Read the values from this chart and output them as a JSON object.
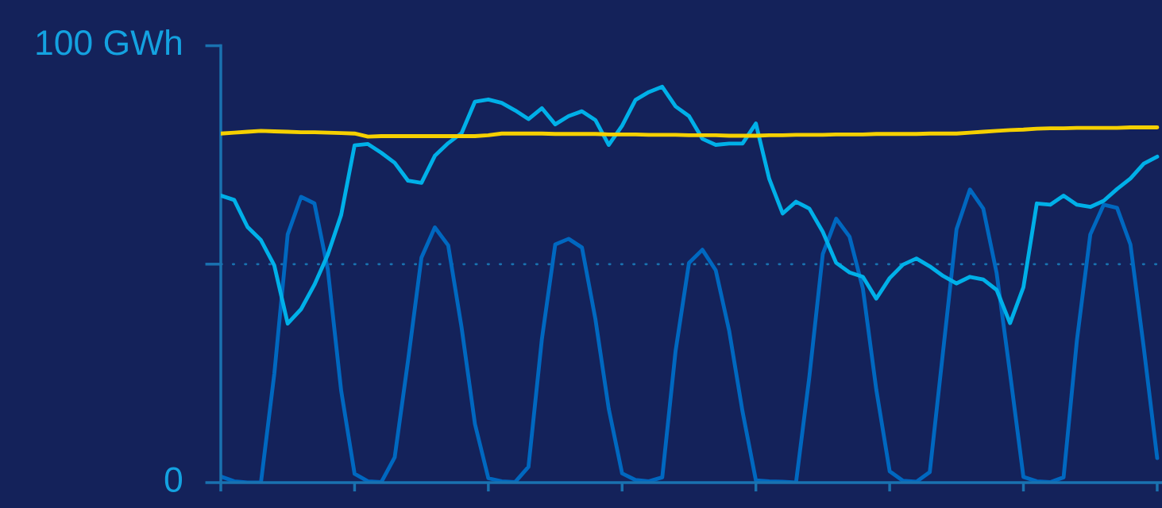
{
  "chart_data": {
    "type": "line",
    "ylim": [
      0,
      100
    ],
    "categories": [
      null,
      null,
      null,
      null,
      null,
      null,
      null,
      null,
      null,
      null,
      null,
      null,
      null,
      null,
      null,
      null,
      null,
      null,
      null,
      null,
      null,
      null,
      null,
      null,
      null,
      null,
      null,
      null,
      null,
      null,
      null,
      null,
      null,
      null,
      null,
      null,
      null,
      null,
      null,
      null,
      null,
      null,
      null,
      null,
      null,
      null,
      null,
      null,
      null,
      null,
      null,
      null,
      null,
      null,
      null,
      null,
      null,
      null,
      null,
      null,
      null,
      null,
      null,
      null,
      null,
      null,
      null,
      null,
      null,
      null,
      null
    ],
    "yticks": [
      {
        "value": 0,
        "label": "0"
      },
      {
        "value": 50,
        "label": null
      },
      {
        "value": 100,
        "label": "100 GWh"
      }
    ],
    "ref_lines": [
      {
        "axis": "y",
        "value": 50,
        "label": null,
        "color": "#1a72b0",
        "line_style": "dotted"
      }
    ],
    "marker": "none",
    "line_style": "solid",
    "series": [
      {
        "color": "#0068c0",
        "values": [
          1.4,
          0.3,
          0,
          0,
          24.9,
          56.8,
          65.4,
          63.9,
          48.8,
          21.0,
          2.0,
          0.3,
          0.1,
          5.8,
          28.0,
          51.5,
          58.4,
          54.3,
          35.5,
          13.4,
          1.0,
          0.3,
          0.1,
          3.6,
          32.8,
          54.5,
          55.8,
          53.8,
          37.5,
          16.9,
          2.1,
          0.6,
          0.3,
          1.2,
          30.2,
          50.3,
          53.3,
          48.6,
          34.8,
          16.3,
          0.5,
          0.3,
          0.2,
          0,
          24.3,
          52.3,
          60.4,
          56.3,
          44.4,
          21.3,
          2.6,
          0.4,
          0.2,
          2.4,
          30.2,
          58.0,
          67.1,
          62.7,
          47.9,
          25.0,
          1.3,
          0.3,
          0.1,
          1.2,
          32.6,
          56.8,
          63.6,
          62.9,
          54.5,
          30.8,
          5.6
        ]
      },
      {
        "color": "#00b0e8",
        "values": [
          65.7,
          64.7,
          58.5,
          55.5,
          49.7,
          36.4,
          39.7,
          45.3,
          52.2,
          61.3,
          77.2,
          77.5,
          75.5,
          73.2,
          69.1,
          68.6,
          74.8,
          77.7,
          80.0,
          87.2,
          87.7,
          86.9,
          85.2,
          83.2,
          85.7,
          82.0,
          83.9,
          85.0,
          83.0,
          77.3,
          81.7,
          87.6,
          89.4,
          90.6,
          86.1,
          83.9,
          78.7,
          77.3,
          77.6,
          77.6,
          82.2,
          69.5,
          61.6,
          64.3,
          62.7,
          57.4,
          50.3,
          48.1,
          47.1,
          42.1,
          46.8,
          49.9,
          51.3,
          49.5,
          47.3,
          45.6,
          47.1,
          46.5,
          44.1,
          36.5,
          44.7,
          63.9,
          63.6,
          65.7,
          63.6,
          63.1,
          64.5,
          67.2,
          69.6,
          73.0,
          74.6
        ]
      },
      {
        "color": "#f5d000",
        "values": [
          79.9,
          80.1,
          80.3,
          80.5,
          80.4,
          80.3,
          80.2,
          80.2,
          80.1,
          80.0,
          79.9,
          79.2,
          79.3,
          79.3,
          79.3,
          79.3,
          79.3,
          79.3,
          79.3,
          79.3,
          79.5,
          79.9,
          79.9,
          79.9,
          79.9,
          79.8,
          79.8,
          79.8,
          79.8,
          79.7,
          79.7,
          79.7,
          79.6,
          79.6,
          79.6,
          79.5,
          79.5,
          79.5,
          79.4,
          79.4,
          79.4,
          79.5,
          79.5,
          79.6,
          79.6,
          79.6,
          79.7,
          79.7,
          79.7,
          79.8,
          79.8,
          79.8,
          79.8,
          79.9,
          79.9,
          79.9,
          80.1,
          80.3,
          80.5,
          80.7,
          80.8,
          81.0,
          81.1,
          81.1,
          81.2,
          81.2,
          81.2,
          81.2,
          81.3,
          81.3,
          81.3
        ]
      }
    ]
  }
}
